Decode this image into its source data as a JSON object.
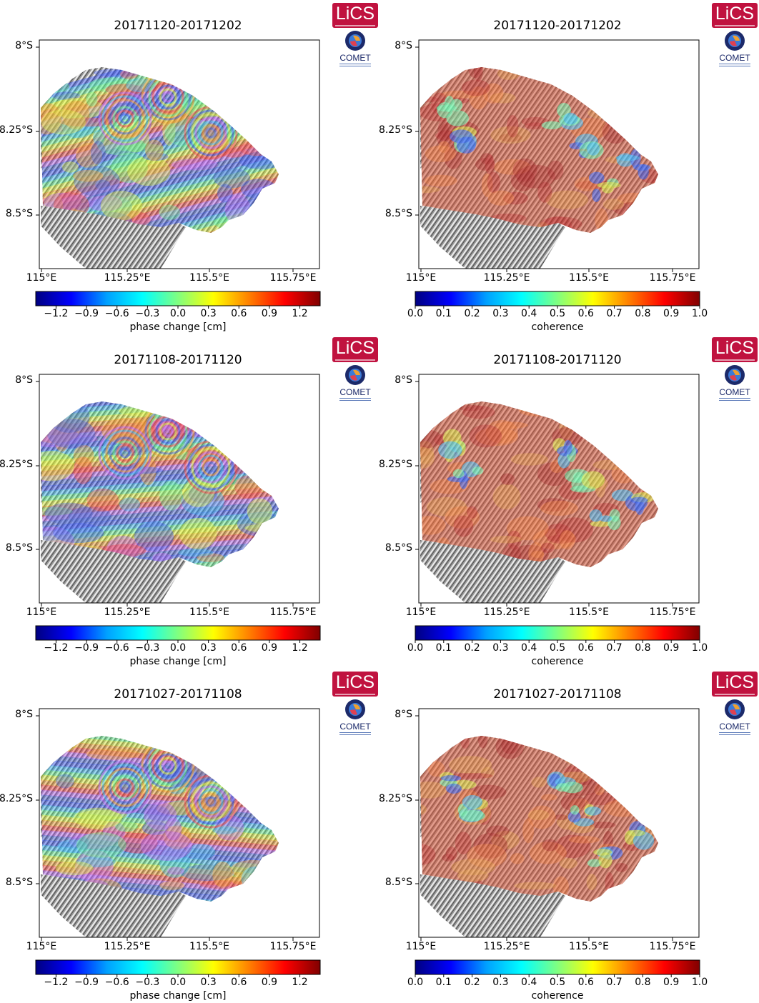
{
  "panels": [
    {
      "title": "20171120-20171202",
      "kind": "phase",
      "colorbar": {
        "ticks": [
          "−1.2",
          "−0.9",
          "−0.6",
          "−0.3",
          "0.0",
          "0.3",
          "0.6",
          "0.9",
          "1.2"
        ],
        "label": "phase change [cm]"
      }
    },
    {
      "title": "20171120-20171202",
      "kind": "coherence",
      "colorbar": {
        "ticks": [
          "0.0",
          "0.1",
          "0.2",
          "0.3",
          "0.4",
          "0.5",
          "0.6",
          "0.7",
          "0.8",
          "0.9",
          "1.0"
        ],
        "label": "coherence"
      }
    },
    {
      "title": "20171108-20171120",
      "kind": "phase",
      "colorbar": {
        "ticks": [
          "−1.2",
          "−0.9",
          "−0.6",
          "−0.3",
          "0.0",
          "0.3",
          "0.6",
          "0.9",
          "1.2"
        ],
        "label": "phase change [cm]"
      }
    },
    {
      "title": "20171108-20171120",
      "kind": "coherence",
      "colorbar": {
        "ticks": [
          "0.0",
          "0.1",
          "0.2",
          "0.3",
          "0.4",
          "0.5",
          "0.6",
          "0.7",
          "0.8",
          "0.9",
          "1.0"
        ],
        "label": "coherence"
      }
    },
    {
      "title": "20171027-20171108",
      "kind": "phase",
      "colorbar": {
        "ticks": [
          "−1.2",
          "−0.9",
          "−0.6",
          "−0.3",
          "0.0",
          "0.3",
          "0.6",
          "0.9",
          "1.2"
        ],
        "label": "phase change [cm]"
      }
    },
    {
      "title": "20171027-20171108",
      "kind": "coherence",
      "colorbar": {
        "ticks": [
          "0.0",
          "0.1",
          "0.2",
          "0.3",
          "0.4",
          "0.5",
          "0.6",
          "0.7",
          "0.8",
          "0.9",
          "1.0"
        ],
        "label": "coherence"
      }
    }
  ],
  "axes": {
    "x_ticks": [
      "115°E",
      "115.25°E",
      "115.5°E",
      "115.75°E"
    ],
    "y_ticks": [
      "8°S",
      "8.25°S",
      "8.5°S"
    ]
  },
  "logos": {
    "lics": "LiCS",
    "comet": "COMET"
  },
  "colors": {
    "lics_brand": "#c0123f",
    "comet_brand": "#1c2a6a",
    "jet_colormap": [
      "#000080",
      "#0000ff",
      "#00a0ff",
      "#00ffff",
      "#80ff80",
      "#ffff00",
      "#ff8000",
      "#ff0000",
      "#800000"
    ]
  }
}
